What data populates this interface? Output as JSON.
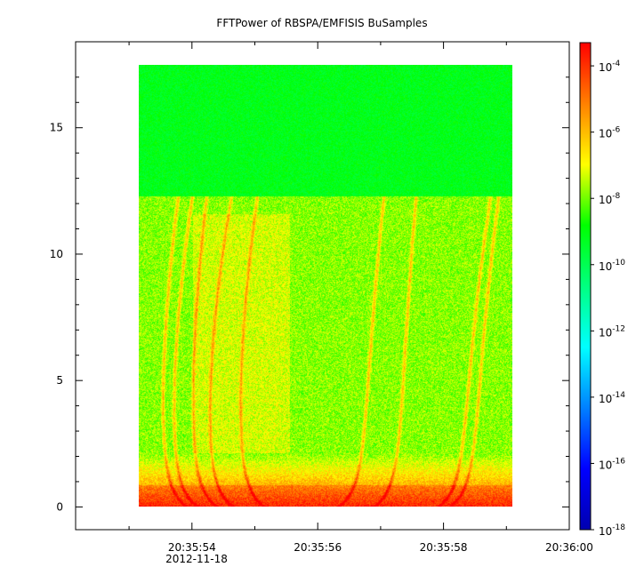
{
  "chart_data": {
    "type": "heatmap",
    "title": "FFTPower of RBSPA/EMFISIS  BuSamples",
    "date_label": "2012-11-18",
    "x_tick_labels": [
      "20:35:54",
      "20:35:56",
      "20:35:58",
      "20:36:00"
    ],
    "x_tick_values_sec": [
      54,
      56,
      58,
      60
    ],
    "x_minor_tick_values_sec": [
      53,
      55,
      57,
      59
    ],
    "xlim_sec": [
      52.15,
      60.0
    ],
    "data_x_range_sec": [
      53.15,
      59.1
    ],
    "y_tick_labels": [
      "0",
      "5",
      "10",
      "15"
    ],
    "y_tick_values": [
      0,
      5,
      10,
      15
    ],
    "ylim": [
      -0.9,
      18.4
    ],
    "data_y_range": [
      0,
      17.5
    ],
    "noise_floor_step_y": 12.3,
    "colorbar": {
      "scale": "log",
      "range_exponent": [
        -18,
        -3.3
      ],
      "tick_base": "10",
      "tick_exponents": [
        "-4",
        "-6",
        "-8",
        "-10",
        "-12",
        "-14",
        "-16",
        "-18"
      ],
      "tick_exponent_values": [
        -4,
        -6,
        -8,
        -10,
        -12,
        -14,
        -16,
        -18
      ],
      "colors": [
        "#0000b0",
        "#0000ff",
        "#0080ff",
        "#00ffff",
        "#00ff80",
        "#00ff00",
        "#ffff00",
        "#ff8000",
        "#ff0000"
      ]
    }
  }
}
